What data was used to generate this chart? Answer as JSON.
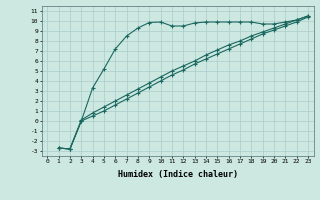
{
  "xlabel": "Humidex (Indice chaleur)",
  "bg_color": "#cce8e0",
  "grid_color": "#aacccc",
  "line_color": "#1a6860",
  "xlim": [
    -0.5,
    23.5
  ],
  "ylim": [
    -3.5,
    11.5
  ],
  "xticks": [
    0,
    1,
    2,
    3,
    4,
    5,
    6,
    7,
    8,
    9,
    10,
    11,
    12,
    13,
    14,
    15,
    16,
    17,
    18,
    19,
    20,
    21,
    22,
    23
  ],
  "yticks": [
    -3,
    -2,
    -1,
    0,
    1,
    2,
    3,
    4,
    5,
    6,
    7,
    8,
    9,
    10,
    11
  ],
  "curve1_x": [
    1,
    2,
    3,
    4,
    5,
    6,
    7,
    8,
    9,
    10,
    11,
    12,
    13,
    14,
    15,
    16,
    17,
    18,
    19,
    20,
    21,
    22,
    23
  ],
  "curve1_y": [
    -2.7,
    -2.8,
    0.0,
    3.3,
    5.2,
    7.2,
    8.5,
    9.3,
    9.85,
    9.9,
    9.5,
    9.5,
    9.8,
    9.9,
    9.9,
    9.9,
    9.9,
    9.9,
    9.7,
    9.7,
    9.9,
    10.1,
    10.5
  ],
  "curve2_x": [
    1,
    2,
    3,
    4,
    5,
    6,
    7,
    8,
    9,
    10,
    11,
    12,
    13,
    14,
    15,
    16,
    17,
    18,
    19,
    20,
    21,
    22,
    23
  ],
  "curve2_y": [
    -2.7,
    -2.8,
    0.1,
    0.8,
    1.4,
    2.0,
    2.6,
    3.2,
    3.8,
    4.4,
    5.0,
    5.5,
    6.0,
    6.6,
    7.1,
    7.6,
    8.0,
    8.5,
    8.9,
    9.3,
    9.7,
    10.1,
    10.5
  ],
  "curve3_x": [
    1,
    2,
    3,
    4,
    5,
    6,
    7,
    8,
    9,
    10,
    11,
    12,
    13,
    14,
    15,
    16,
    17,
    18,
    19,
    20,
    21,
    22,
    23
  ],
  "curve3_y": [
    -2.7,
    -2.8,
    0.0,
    0.5,
    1.0,
    1.6,
    2.2,
    2.8,
    3.4,
    4.0,
    4.6,
    5.1,
    5.7,
    6.2,
    6.7,
    7.2,
    7.7,
    8.2,
    8.7,
    9.1,
    9.5,
    9.9,
    10.4
  ]
}
